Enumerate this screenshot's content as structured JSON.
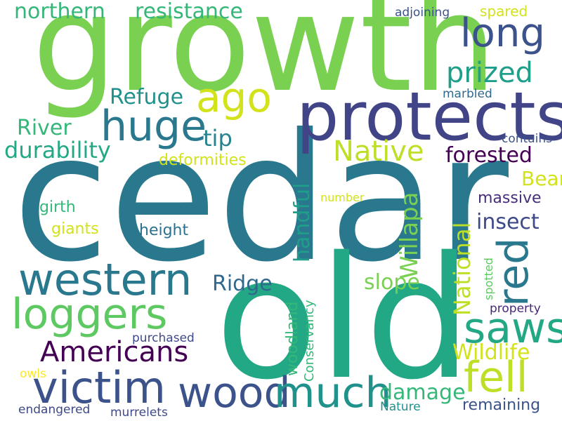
{
  "words": {
    "cedar": {
      "text": "cedar",
      "color": "#2a788e"
    },
    "growth": {
      "text": "growth",
      "color": "#7ad151"
    },
    "old": {
      "text": "old",
      "color": "#22a884"
    },
    "protects": {
      "text": "protects",
      "color": "#414487"
    },
    "western": {
      "text": "western",
      "color": "#2a788e"
    },
    "loggers": {
      "text": "loggers",
      "color": "#5ec962"
    },
    "victim": {
      "text": "victim",
      "color": "#3b528b"
    },
    "wood": {
      "text": "wood",
      "color": "#3b528b"
    },
    "much": {
      "text": "much",
      "color": "#21918c"
    },
    "saws": {
      "text": "saws",
      "color": "#22a884"
    },
    "fell": {
      "text": "fell",
      "color": "#bddf26"
    },
    "red": {
      "text": "red",
      "color": "#2a788e"
    },
    "huge": {
      "text": "huge",
      "color": "#2a788e"
    },
    "ago": {
      "text": "ago",
      "color": "#d2e21b"
    },
    "long": {
      "text": "long",
      "color": "#3b528b"
    },
    "prized": {
      "text": "prized",
      "color": "#1f9e89"
    },
    "Americans": {
      "text": "Americans",
      "color": "#440154"
    },
    "Native": {
      "text": "Native",
      "color": "#bddf26"
    },
    "northern": {
      "text": "northern",
      "color": "#35b779"
    },
    "resistance": {
      "text": "resistance",
      "color": "#35b779"
    },
    "durability": {
      "text": "durability",
      "color": "#22a884"
    },
    "forested": {
      "text": "forested",
      "color": "#440154"
    },
    "insect": {
      "text": "insect",
      "color": "#3e4989"
    },
    "Refuge": {
      "text": "Refuge",
      "color": "#21918c"
    },
    "River": {
      "text": "River",
      "color": "#35b779"
    },
    "tip": {
      "text": "tip",
      "color": "#26828e"
    },
    "Ridge": {
      "text": "Ridge",
      "color": "#31688e"
    },
    "slope": {
      "text": "slope",
      "color": "#7ad151"
    },
    "Bear": {
      "text": "Bear",
      "color": "#d2e21b"
    },
    "Willapa": {
      "text": "Willapa",
      "color": "#7ad151"
    },
    "National": {
      "text": "National",
      "color": "#bddf26"
    },
    "handful": {
      "text": "handful",
      "color": "#1f9e89"
    },
    "massive": {
      "text": "massive",
      "color": "#472d7b"
    },
    "Wildlife": {
      "text": "Wildlife",
      "color": "#d2e21b"
    },
    "damage": {
      "text": "damage",
      "color": "#35b779"
    },
    "remaining": {
      "text": "remaining",
      "color": "#3b528b"
    },
    "deformities": {
      "text": "deformities",
      "color": "#d2e21b"
    },
    "girth": {
      "text": "girth",
      "color": "#35b779"
    },
    "giants": {
      "text": "giants",
      "color": "#d2e21b"
    },
    "height": {
      "text": "height",
      "color": "#2c728e"
    },
    "woodland": {
      "text": "woodland",
      "color": "#35b779"
    },
    "Conservancy": {
      "text": "Conservancy",
      "color": "#35b779"
    },
    "purchased": {
      "text": "purchased",
      "color": "#3e4989"
    },
    "owls": {
      "text": "owls",
      "color": "#fde725"
    },
    "endangered": {
      "text": "endangered",
      "color": "#3e4989"
    },
    "murrelets": {
      "text": "murrelets",
      "color": "#3e4989"
    },
    "Nature": {
      "text": "Nature",
      "color": "#21918c"
    },
    "spotted": {
      "text": "spotted",
      "color": "#5ec962"
    },
    "property": {
      "text": "property",
      "color": "#482878"
    },
    "number": {
      "text": "number",
      "color": "#d2e21b"
    },
    "contains": {
      "text": "contains",
      "color": "#3b528b"
    },
    "marbled": {
      "text": "marbled",
      "color": "#31688e"
    },
    "adjoining": {
      "text": "adjoining",
      "color": "#3b528b"
    },
    "spared": {
      "text": "spared",
      "color": "#d2e21b"
    }
  }
}
